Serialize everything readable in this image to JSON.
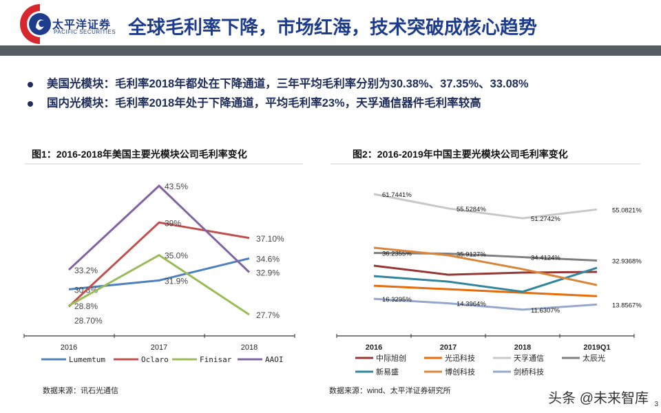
{
  "header": {
    "logo_cn": "太平洋证券",
    "logo_en": "PACIFIC SECURITIES",
    "title": "全球毛利率下降，市场红海，技术突破成核心趋势"
  },
  "bullets": [
    "美国光模块：毛利率2018年都处在下降通道，三年平均毛利率分别为30.38%、37.35%、33.08%",
    "国内光模块：毛利率2018年处于下降通道，平均毛利率23%，天孚通信器件毛利率较高"
  ],
  "chart_data": [
    {
      "type": "line",
      "title": "图1：2016-2018年美国主要光模块公司毛利率变化",
      "categories": [
        "2016",
        "2017",
        "2018"
      ],
      "series": [
        {
          "name": "Lumemtum",
          "color": "#4f81bd",
          "values": [
            30.8,
            31.9,
            34.6
          ],
          "labels": [
            "30.8%",
            "31.9%",
            "34.6%"
          ]
        },
        {
          "name": "Oclaro",
          "color": "#c0504d",
          "values": [
            28.7,
            39.0,
            37.1
          ],
          "labels": [
            "28.70%",
            "39%",
            "37.10%"
          ]
        },
        {
          "name": "Finisar",
          "color": "#9bbb59",
          "values": [
            28.8,
            35.0,
            27.7
          ],
          "labels": [
            "28.8%",
            "35.0%",
            "27.7%"
          ]
        },
        {
          "name": "AAOI",
          "color": "#8064a2",
          "values": [
            33.2,
            43.5,
            32.9
          ],
          "labels": [
            "33.2%",
            "43.5%",
            "32.9%"
          ]
        }
      ],
      "ylim": [
        25,
        45
      ],
      "legend": "bottom",
      "source": "数据来源：讯石光通信"
    },
    {
      "type": "line",
      "title": "图2：2016-2019年中国主要光模块公司毛利率变化",
      "categories": [
        "2016",
        "2017",
        "2018",
        "2019Q1"
      ],
      "series": [
        {
          "name": "中际旭创",
          "color": "#953735",
          "values": [
            30.7,
            26.8,
            27.7,
            28.0
          ],
          "labels": []
        },
        {
          "name": "光迅科技",
          "color": "#e46c0a",
          "values": [
            22.0,
            20.5,
            19.0,
            17.5
          ],
          "labels": []
        },
        {
          "name": "天孚通信",
          "color": "#c8c8c8",
          "values": [
            61.7441,
            55.5284,
            51.2742,
            55.0821
          ],
          "labels": [
            "61.7441%",
            "55.5284%",
            "51.2742%",
            "55.0821%"
          ]
        },
        {
          "name": "太辰光",
          "color": "#7f7f7f",
          "values": [
            36.2355,
            35.9127,
            34.4124,
            32.9368
          ],
          "labels": [
            "36.2355%",
            "35.9127%",
            "34.4124%",
            "32.9368%"
          ]
        },
        {
          "name": "新易盛",
          "color": "#31859c",
          "values": [
            26.2,
            23.8,
            19.4,
            29.8
          ],
          "labels": []
        },
        {
          "name": "博创科技",
          "color": "#d9863d",
          "values": [
            38.5,
            35.2,
            29.2,
            22.3
          ],
          "labels": []
        },
        {
          "name": "剑桥科技",
          "color": "#95a8cc",
          "values": [
            16.3295,
            14.3964,
            11.6307,
            13.8567
          ],
          "labels": [
            "16.3295%",
            "14.3964%",
            "11.6307%",
            "13.8567%"
          ]
        }
      ],
      "ylim": [
        0,
        70
      ],
      "legend": "bottom",
      "source": "数据来源：wind、太平洋证券研究所"
    }
  ],
  "watermark": "头条 @未来智库",
  "page_number": "3"
}
